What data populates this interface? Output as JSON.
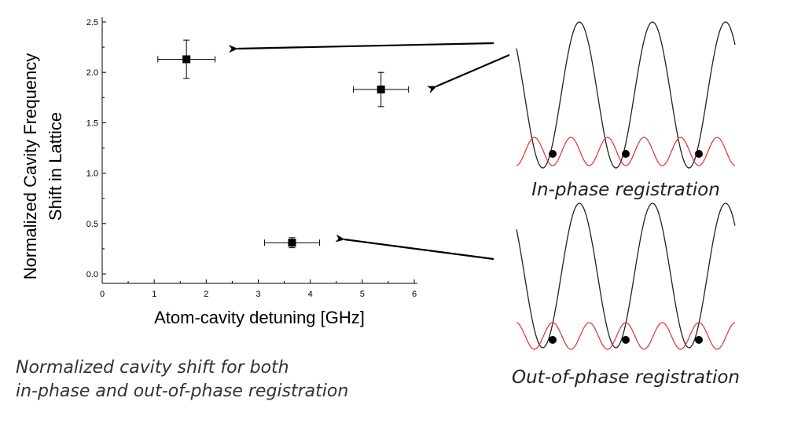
{
  "chart_data": {
    "type": "scatter",
    "xlabel": "Atom-cavity detuning [GHz]",
    "ylabel_lines": [
      "Normalized Cavity Frequency",
      "Shift in Lattice"
    ],
    "xlim": [
      0,
      6
    ],
    "ylim": [
      0,
      2.5
    ],
    "x_ticks": [
      "0",
      "1",
      "2",
      "3",
      "4",
      "5",
      "6"
    ],
    "y_ticks": [
      "0.0",
      "0.5",
      "1.0",
      "1.5",
      "2.0",
      "2.5"
    ],
    "grid": false,
    "points": [
      {
        "x": 1.62,
        "y": 2.13,
        "x_err": 0.55,
        "y_err": 0.19
      },
      {
        "x": 5.36,
        "y": 1.83,
        "x_err": 0.53,
        "y_err": 0.17
      },
      {
        "x": 3.65,
        "y": 0.31,
        "x_err": 0.53,
        "y_err": 0.05
      }
    ]
  },
  "caption_lines": [
    "Normalized cavity shift for both",
    "in-phase and out-of-phase registration"
  ],
  "diagrams": [
    {
      "id": "in-phase",
      "label": "In-phase registration"
    },
    {
      "id": "out-of-phase",
      "label": "Out-of-phase registration"
    }
  ],
  "colors": {
    "lattice": "#222222",
    "cavity_mode": "#e03030",
    "atom": "#000000",
    "axis": "#000000"
  }
}
